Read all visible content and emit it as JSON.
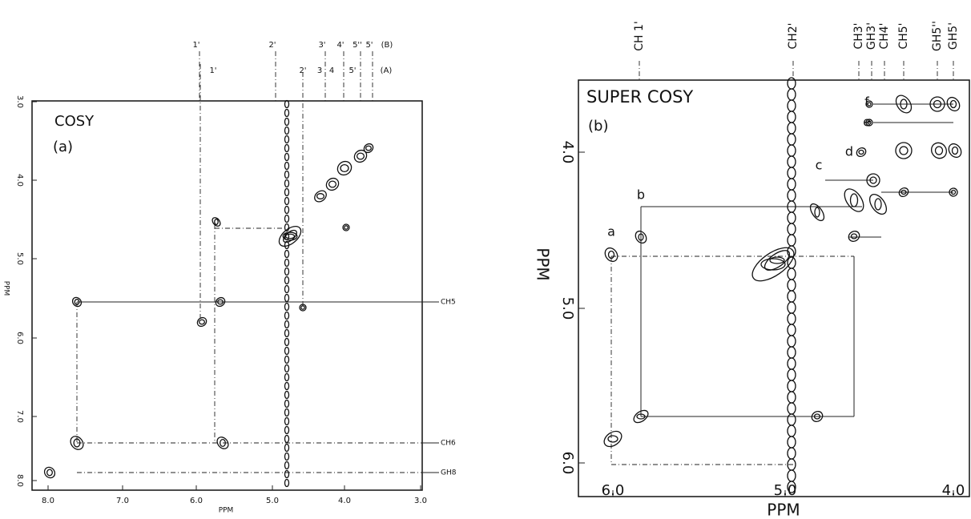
{
  "panel_a": {
    "title": "COSY",
    "label": "(a)",
    "x_axis_label": "PPM",
    "y_axis_label": "PPM",
    "x_ticks": [
      "8.0",
      "7.0",
      "6.0",
      "5.0",
      "4.0",
      "3.0"
    ],
    "y_ticks": [
      "3.0",
      "4.0",
      "5.0",
      "6.0",
      "7.0",
      "8.0"
    ],
    "top_labels_b": [
      "1'",
      "2'",
      "3'",
      "4'",
      "5''",
      "5'",
      "(B)"
    ],
    "top_labels_a": [
      "1'",
      "2'",
      "3",
      "4",
      "5'",
      "(A)"
    ],
    "right_labels": [
      "CH5",
      "CH6",
      "GH8"
    ]
  },
  "panel_b": {
    "title": "SUPER COSY",
    "label": "(b)",
    "x_axis_label": "PPM",
    "y_axis_label": "PPM",
    "x_ticks": [
      "6.0",
      "5.0",
      "4.0"
    ],
    "y_ticks": [
      "4.0",
      "5.0",
      "6.0"
    ],
    "top_labels": [
      "CH 1'",
      "CH2'",
      "CH3'",
      "GH3'",
      "CH4'",
      "CH5'",
      "GH5''",
      "GH5'"
    ],
    "cross_peaks": [
      "a",
      "b",
      "c",
      "d",
      "e",
      "f"
    ]
  }
}
